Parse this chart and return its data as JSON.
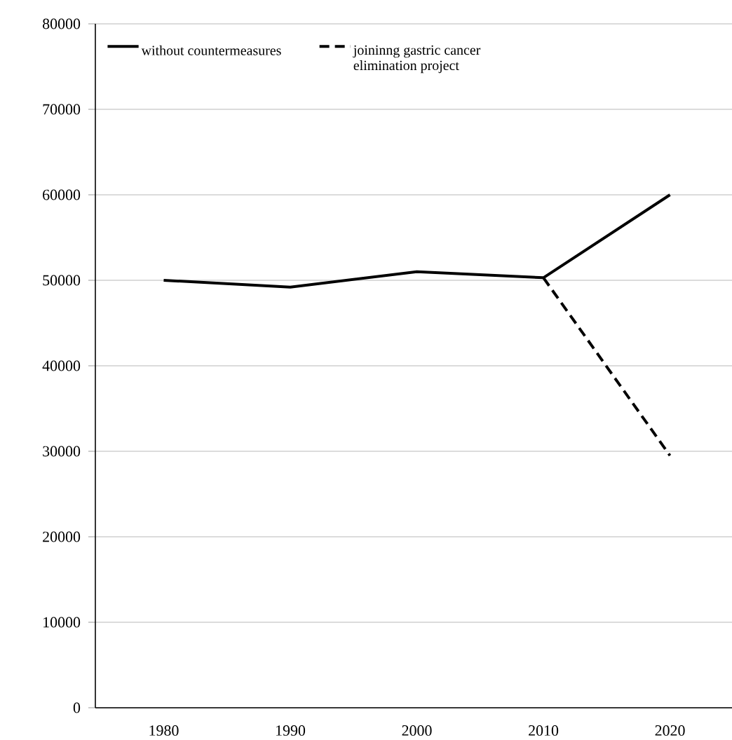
{
  "chart_data": {
    "type": "line",
    "categories": [
      "1980",
      "1990",
      "2000",
      "2010",
      "2020"
    ],
    "series": [
      {
        "name": "without countermeasures",
        "color": "#000000",
        "values": [
          50000,
          49200,
          51000,
          50300,
          60000
        ],
        "line_style": "solid"
      },
      {
        "name": "joininng gastric cancer elimination project",
        "color": "#000000",
        "values": [
          null,
          null,
          null,
          50300,
          29500
        ],
        "line_style": "dashed"
      }
    ],
    "ylim": [
      0,
      80000
    ],
    "yticks": [
      0,
      10000,
      20000,
      30000,
      40000,
      50000,
      60000,
      70000,
      80000
    ],
    "grid": "y",
    "legend": "top",
    "marker": "none"
  }
}
